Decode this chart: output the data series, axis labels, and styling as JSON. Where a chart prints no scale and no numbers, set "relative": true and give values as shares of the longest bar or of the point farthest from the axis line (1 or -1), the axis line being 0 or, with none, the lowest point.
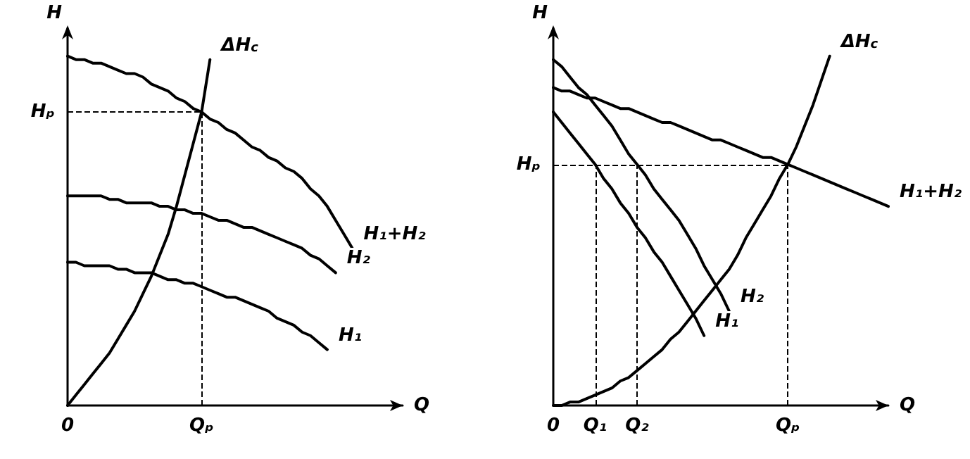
{
  "chart_data": [
    {
      "type": "line",
      "relative": true,
      "xlabel": "Q",
      "ylabel": "H",
      "legend": false,
      "grid": false,
      "marker": "none",
      "line_style": "solid",
      "categories": [
        "0",
        null,
        null,
        null,
        null,
        null,
        null,
        null,
        null,
        null,
        null,
        null,
        null,
        null,
        null,
        null,
        "Qₚ",
        null,
        null,
        null,
        null,
        null,
        null,
        null,
        null,
        null,
        null,
        null,
        null,
        null,
        null,
        null,
        null,
        null,
        null,
        null,
        null,
        null,
        null,
        null,
        null
      ],
      "series": [
        {
          "name": "H₁+H₂",
          "color": "#000000",
          "values": [
            1.0,
            0.99,
            0.99,
            0.98,
            0.98,
            0.97,
            0.96,
            0.95,
            0.95,
            0.94,
            0.92,
            0.91,
            0.9,
            0.88,
            0.87,
            0.85,
            0.84,
            0.82,
            0.81,
            0.79,
            0.78,
            0.76,
            0.74,
            0.73,
            0.71,
            0.7,
            0.68,
            0.67,
            0.65,
            0.62,
            0.6,
            0.57,
            0.53,
            0.49,
            0.45,
            null,
            null,
            null,
            null,
            null,
            null
          ]
        },
        {
          "name": "H₂",
          "color": "#000000",
          "values": [
            0.6,
            0.6,
            0.6,
            0.6,
            0.6,
            0.59,
            0.59,
            0.58,
            0.58,
            0.58,
            0.58,
            0.57,
            0.57,
            0.56,
            0.56,
            0.55,
            0.55,
            0.54,
            0.53,
            0.53,
            0.52,
            0.51,
            0.51,
            0.5,
            0.49,
            0.48,
            0.47,
            0.46,
            0.45,
            0.43,
            0.42,
            0.4,
            0.38,
            null,
            null,
            null,
            null,
            null,
            null,
            null,
            null
          ]
        },
        {
          "name": "H₁",
          "color": "#000000",
          "values": [
            0.41,
            0.41,
            0.4,
            0.4,
            0.4,
            0.4,
            0.39,
            0.39,
            0.38,
            0.38,
            0.38,
            0.37,
            0.36,
            0.36,
            0.35,
            0.35,
            0.34,
            0.33,
            0.32,
            0.31,
            0.31,
            0.3,
            0.29,
            0.28,
            0.27,
            0.25,
            0.24,
            0.23,
            0.21,
            0.2,
            0.18,
            0.16,
            null,
            null,
            null,
            null,
            null,
            null,
            null,
            null,
            null
          ]
        },
        {
          "name": "ΔH$_{c}$",
          "color": "#000000",
          "values": [
            0,
            0.03,
            0.06,
            0.09,
            0.12,
            0.15,
            0.19,
            0.23,
            0.27,
            0.32,
            0.37,
            0.43,
            0.49,
            0.57,
            0.66,
            0.75,
            0.84,
            0.99,
            null,
            null,
            null,
            null,
            null,
            null,
            null,
            null,
            null,
            null,
            null,
            null,
            null,
            null,
            null,
            null,
            null,
            null,
            null,
            null,
            null,
            null,
            null
          ]
        }
      ],
      "ref_lines": [
        {
          "axis": "y",
          "value": 0.84,
          "label": "Hₚ",
          "line_style": "dashed"
        },
        {
          "axis": "x",
          "value": "Qₚ",
          "line_style": "dashed"
        }
      ]
    },
    {
      "type": "line",
      "relative": true,
      "xlabel": "Q",
      "ylabel": "H",
      "legend": false,
      "grid": false,
      "marker": "none",
      "line_style": "solid",
      "categories": [
        "0",
        null,
        null,
        null,
        null,
        "Q₁",
        null,
        null,
        null,
        null,
        "Q₂",
        null,
        null,
        null,
        null,
        null,
        null,
        null,
        null,
        null,
        null,
        null,
        null,
        null,
        null,
        null,
        null,
        null,
        "Qₚ",
        null,
        null,
        null,
        null,
        null,
        null,
        null,
        null,
        null,
        null,
        null,
        null
      ],
      "series": [
        {
          "name": "H₁+H₂",
          "color": "#000000",
          "values": [
            0.91,
            0.9,
            0.9,
            0.89,
            0.88,
            0.88,
            0.87,
            0.86,
            0.85,
            0.85,
            0.84,
            0.83,
            0.82,
            0.81,
            0.81,
            0.8,
            0.79,
            0.78,
            0.77,
            0.76,
            0.76,
            0.75,
            0.74,
            0.73,
            0.72,
            0.71,
            0.71,
            0.7,
            0.69,
            0.68,
            0.67,
            0.66,
            0.65,
            0.64,
            0.63,
            0.62,
            0.61,
            0.6,
            0.59,
            0.58,
            0.57
          ]
        },
        {
          "name": "H₂",
          "color": "#000000",
          "values": [
            0.99,
            0.97,
            0.94,
            0.91,
            0.89,
            0.86,
            0.83,
            0.8,
            0.76,
            0.72,
            0.69,
            0.66,
            0.62,
            0.59,
            0.56,
            0.53,
            0.49,
            0.45,
            0.4,
            0.36,
            0.32,
            0.27,
            null,
            null,
            null,
            null,
            null,
            null,
            null,
            null,
            null,
            null,
            null,
            null,
            null,
            null,
            null,
            null,
            null,
            null,
            null
          ]
        },
        {
          "name": "H₁",
          "color": "#000000",
          "values": [
            0.84,
            0.81,
            0.78,
            0.75,
            0.72,
            0.69,
            0.65,
            0.62,
            0.58,
            0.55,
            0.51,
            0.48,
            0.44,
            0.41,
            0.37,
            0.33,
            0.29,
            0.25,
            0.2,
            null,
            null,
            null,
            null,
            null,
            null,
            null,
            null,
            null,
            null,
            null,
            null,
            null,
            null,
            null,
            null,
            null,
            null,
            null,
            null,
            null,
            null
          ]
        },
        {
          "name": "ΔH$_{c}$",
          "color": "#000000",
          "values": [
            0,
            0.0,
            0.01,
            0.01,
            0.02,
            0.03,
            0.04,
            0.05,
            0.07,
            0.08,
            0.1,
            0.12,
            0.14,
            0.16,
            0.19,
            0.21,
            0.24,
            0.27,
            0.3,
            0.33,
            0.36,
            0.39,
            0.43,
            0.48,
            0.52,
            0.56,
            0.6,
            0.65,
            0.69,
            0.74,
            0.8,
            0.86,
            0.93,
            1.0,
            null,
            null,
            null,
            null,
            null,
            null,
            null
          ]
        }
      ],
      "ref_lines": [
        {
          "axis": "y",
          "value": 0.69,
          "label": "Hₚ",
          "line_style": "dashed"
        },
        {
          "axis": "x",
          "value": "Q₁",
          "line_style": "dashed"
        },
        {
          "axis": "x",
          "value": "Q₂",
          "line_style": "dashed"
        },
        {
          "axis": "x",
          "value": "Qₚ",
          "line_style": "dashed"
        }
      ]
    }
  ]
}
